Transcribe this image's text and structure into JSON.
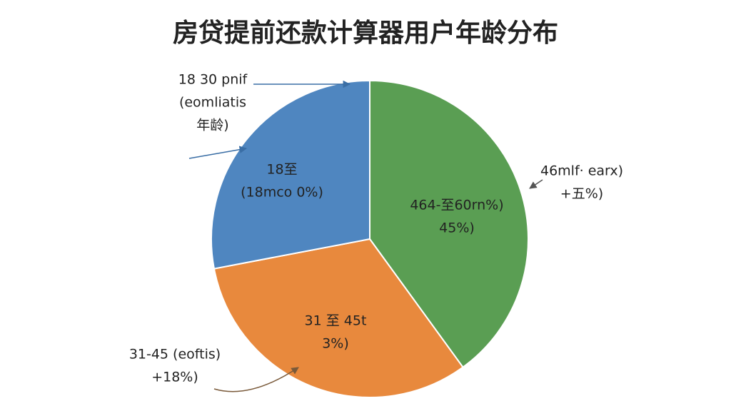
{
  "chart_data": {
    "type": "pie",
    "title": "房贷提前还款计算器用户年龄分布",
    "values": [
      40,
      32,
      28
    ],
    "colors": [
      "#5a9e53",
      "#e8893d",
      "#4f86c0"
    ],
    "inner_labels": [
      [
        "464-至60rn%)",
        "45%)"
      ],
      [
        "31 至 45t",
        "3%)"
      ],
      [
        "18至",
        "(18mco 0%)"
      ]
    ],
    "callouts": [
      [
        "46mlf· earx)",
        "+五%)"
      ],
      [
        "31-45 (eoftis)",
        "+18%)"
      ],
      [
        "18 30 pnif",
        "(eomliatis",
        "年龄)"
      ]
    ]
  }
}
